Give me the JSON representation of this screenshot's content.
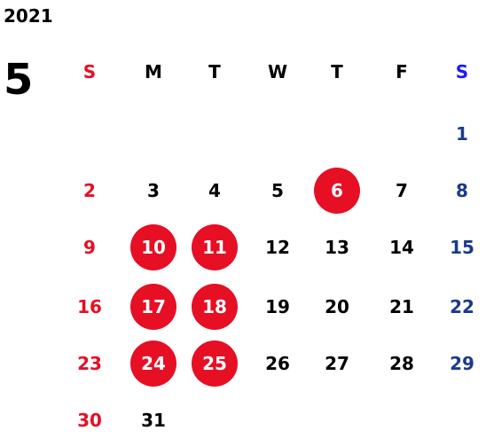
{
  "calendar": {
    "year": "2021",
    "month": "5",
    "weekdays": [
      {
        "label": "S",
        "color": "#e60f24"
      },
      {
        "label": "M",
        "color": "#000000"
      },
      {
        "label": "T",
        "color": "#000000"
      },
      {
        "label": "W",
        "color": "#000000"
      },
      {
        "label": "T",
        "color": "#000000"
      },
      {
        "label": "F",
        "color": "#000000"
      },
      {
        "label": "S",
        "color": "#1a1aff"
      }
    ],
    "days": [
      {
        "label": "1",
        "week": 0,
        "weekday": 6
      },
      {
        "label": "2",
        "week": 1,
        "weekday": 0
      },
      {
        "label": "3",
        "week": 1,
        "weekday": 1
      },
      {
        "label": "4",
        "week": 1,
        "weekday": 2
      },
      {
        "label": "5",
        "week": 1,
        "weekday": 3
      },
      {
        "label": "6",
        "week": 1,
        "weekday": 4,
        "highlighted": true
      },
      {
        "label": "7",
        "week": 1,
        "weekday": 5
      },
      {
        "label": "8",
        "week": 1,
        "weekday": 6
      },
      {
        "label": "9",
        "week": 2,
        "weekday": 0
      },
      {
        "label": "10",
        "week": 2,
        "weekday": 1,
        "highlighted": true
      },
      {
        "label": "11",
        "week": 2,
        "weekday": 2,
        "highlighted": true
      },
      {
        "label": "12",
        "week": 2,
        "weekday": 3
      },
      {
        "label": "13",
        "week": 2,
        "weekday": 4
      },
      {
        "label": "14",
        "week": 2,
        "weekday": 5
      },
      {
        "label": "15",
        "week": 2,
        "weekday": 6
      },
      {
        "label": "16",
        "week": 3,
        "weekday": 0
      },
      {
        "label": "17",
        "week": 3,
        "weekday": 1,
        "highlighted": true
      },
      {
        "label": "18",
        "week": 3,
        "weekday": 2,
        "highlighted": true
      },
      {
        "label": "19",
        "week": 3,
        "weekday": 3
      },
      {
        "label": "20",
        "week": 3,
        "weekday": 4
      },
      {
        "label": "21",
        "week": 3,
        "weekday": 5
      },
      {
        "label": "22",
        "week": 3,
        "weekday": 6
      },
      {
        "label": "23",
        "week": 4,
        "weekday": 0
      },
      {
        "label": "24",
        "week": 4,
        "weekday": 1,
        "highlighted": true
      },
      {
        "label": "25",
        "week": 4,
        "weekday": 2,
        "highlighted": true
      },
      {
        "label": "26",
        "week": 4,
        "weekday": 3
      },
      {
        "label": "27",
        "week": 4,
        "weekday": 4
      },
      {
        "label": "28",
        "week": 4,
        "weekday": 5
      },
      {
        "label": "29",
        "week": 4,
        "weekday": 6
      },
      {
        "label": "30",
        "week": 5,
        "weekday": 0
      },
      {
        "label": "31",
        "week": 5,
        "weekday": 1
      }
    ],
    "colors": {
      "sunday": "#e60f24",
      "saturday": "#1a3a8c",
      "weekday": "#000000",
      "highlight_bg": "#e60f24",
      "highlight_text": "#ffffff"
    }
  }
}
